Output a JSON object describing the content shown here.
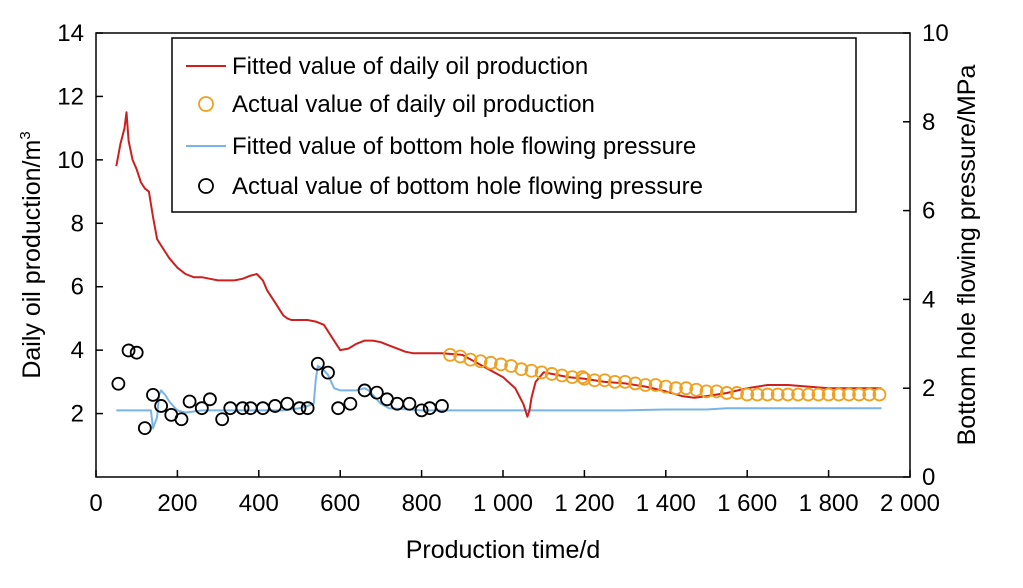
{
  "chart_data": {
    "type": "line",
    "xlabel": "Production time/d",
    "ylabel_left": "Daily oil production/m",
    "ylabel_left_superscript": "3",
    "ylabel_right": "Bottom hole flowing pressure/MPa",
    "xlim": [
      0,
      2000
    ],
    "ylim_left": [
      0,
      14
    ],
    "ylim_right": [
      0,
      10
    ],
    "x_ticks": [
      0,
      200,
      400,
      600,
      800,
      1000,
      1200,
      1400,
      1600,
      1800,
      2000
    ],
    "x_tick_labels": [
      "0",
      "200",
      "400",
      "600",
      "800",
      "1 000",
      "1 200",
      "1 400",
      "1 600",
      "1 800",
      "2 000"
    ],
    "y_left_ticks": [
      2,
      4,
      6,
      8,
      10,
      12,
      14
    ],
    "y_left_tick_labels": [
      "2",
      "4",
      "6",
      "8",
      "10",
      "12",
      "14"
    ],
    "y_right_ticks": [
      0,
      2,
      4,
      6,
      8,
      10
    ],
    "y_right_tick_labels": [
      "0",
      "2",
      "4",
      "6",
      "8",
      "10"
    ],
    "grid": false,
    "legend_position": "top-center",
    "series": [
      {
        "name": "Fitted value of daily oil production",
        "kind": "line",
        "axis": "left",
        "color": "#cc1f1f",
        "x": [
          50,
          60,
          70,
          75,
          80,
          90,
          100,
          110,
          120,
          130,
          140,
          150,
          160,
          180,
          200,
          220,
          240,
          260,
          280,
          300,
          320,
          340,
          360,
          380,
          395,
          410,
          420,
          440,
          460,
          470,
          480,
          500,
          520,
          540,
          560,
          575,
          590,
          600,
          620,
          640,
          660,
          680,
          700,
          720,
          740,
          760,
          780,
          800,
          850,
          900,
          950,
          1000,
          1030,
          1050,
          1060,
          1065,
          1070,
          1080,
          1100,
          1120,
          1140,
          1160,
          1200,
          1250,
          1300,
          1350,
          1400,
          1440,
          1470,
          1500,
          1550,
          1600,
          1650,
          1700,
          1750,
          1800,
          1850,
          1900,
          1930
        ],
        "y": [
          9.8,
          10.5,
          11.0,
          11.5,
          10.6,
          10.0,
          9.7,
          9.3,
          9.1,
          9.0,
          8.2,
          7.5,
          7.3,
          6.9,
          6.6,
          6.4,
          6.3,
          6.3,
          6.25,
          6.2,
          6.2,
          6.2,
          6.25,
          6.35,
          6.4,
          6.2,
          5.9,
          5.5,
          5.1,
          5.0,
          4.95,
          4.95,
          4.95,
          4.9,
          4.8,
          4.5,
          4.2,
          4.0,
          4.05,
          4.2,
          4.3,
          4.3,
          4.25,
          4.15,
          4.05,
          3.95,
          3.9,
          3.9,
          3.9,
          3.85,
          3.5,
          3.15,
          2.8,
          2.3,
          1.9,
          2.1,
          2.5,
          3.0,
          3.3,
          3.25,
          3.2,
          3.15,
          3.1,
          3.0,
          2.95,
          2.85,
          2.7,
          2.55,
          2.5,
          2.55,
          2.65,
          2.8,
          2.9,
          2.9,
          2.85,
          2.8,
          2.8,
          2.8,
          2.8
        ]
      },
      {
        "name": "Actual value of daily oil production",
        "kind": "scatter",
        "axis": "left",
        "color": "#f0a020",
        "x": [
          870,
          895,
          920,
          945,
          970,
          995,
          1020,
          1045,
          1070,
          1095,
          1120,
          1145,
          1170,
          1195,
          1200,
          1225,
          1250,
          1275,
          1300,
          1325,
          1350,
          1375,
          1400,
          1425,
          1450,
          1475,
          1500,
          1525,
          1550,
          1575,
          1600,
          1625,
          1650,
          1675,
          1700,
          1725,
          1750,
          1775,
          1800,
          1825,
          1850,
          1875,
          1900,
          1925
        ],
        "y": [
          3.85,
          3.8,
          3.7,
          3.65,
          3.6,
          3.55,
          3.5,
          3.4,
          3.35,
          3.3,
          3.25,
          3.2,
          3.15,
          3.15,
          3.1,
          3.05,
          3.05,
          3.0,
          3.0,
          2.95,
          2.9,
          2.9,
          2.85,
          2.8,
          2.8,
          2.75,
          2.7,
          2.7,
          2.65,
          2.65,
          2.6,
          2.6,
          2.6,
          2.6,
          2.6,
          2.6,
          2.6,
          2.6,
          2.6,
          2.6,
          2.6,
          2.6,
          2.6,
          2.6
        ]
      },
      {
        "name": "Fitted value of bottom hole flowing pressure",
        "kind": "line",
        "axis": "right",
        "color": "#7ab4e6",
        "x": [
          50,
          120,
          135,
          140,
          150,
          155,
          160,
          170,
          180,
          190,
          200,
          220,
          260,
          300,
          340,
          380,
          420,
          460,
          500,
          520,
          535,
          540,
          545,
          555,
          570,
          585,
          600,
          640,
          660,
          670,
          680,
          690,
          700,
          720,
          800,
          900,
          1000,
          1100,
          1200,
          1300,
          1400,
          1500,
          1550,
          1600,
          1700,
          1800,
          1930
        ],
        "y": [
          1.5,
          1.5,
          1.5,
          1.1,
          1.35,
          1.85,
          1.95,
          1.85,
          1.7,
          1.6,
          1.5,
          1.45,
          1.5,
          1.5,
          1.5,
          1.5,
          1.5,
          1.5,
          1.55,
          1.6,
          1.65,
          2.2,
          2.5,
          2.45,
          2.3,
          2.0,
          1.95,
          1.95,
          2.0,
          1.95,
          1.85,
          1.75,
          1.65,
          1.55,
          1.5,
          1.5,
          1.5,
          1.5,
          1.5,
          1.5,
          1.52,
          1.52,
          1.55,
          1.55,
          1.55,
          1.55,
          1.55
        ]
      },
      {
        "name": "Actual value of bottom hole flowing pressure",
        "kind": "scatter",
        "axis": "right",
        "color": "#000000",
        "x": [
          55,
          80,
          100,
          120,
          140,
          160,
          185,
          210,
          230,
          260,
          280,
          310,
          330,
          360,
          380,
          410,
          440,
          470,
          500,
          520,
          545,
          570,
          595,
          625,
          660,
          690,
          715,
          740,
          770,
          800,
          820,
          850
        ],
        "y": [
          2.1,
          2.85,
          2.8,
          1.1,
          1.85,
          1.6,
          1.4,
          1.3,
          1.7,
          1.55,
          1.75,
          1.3,
          1.55,
          1.55,
          1.55,
          1.55,
          1.6,
          1.65,
          1.55,
          1.55,
          2.55,
          2.35,
          1.55,
          1.65,
          1.95,
          1.9,
          1.75,
          1.65,
          1.65,
          1.5,
          1.55,
          1.6
        ]
      }
    ]
  }
}
